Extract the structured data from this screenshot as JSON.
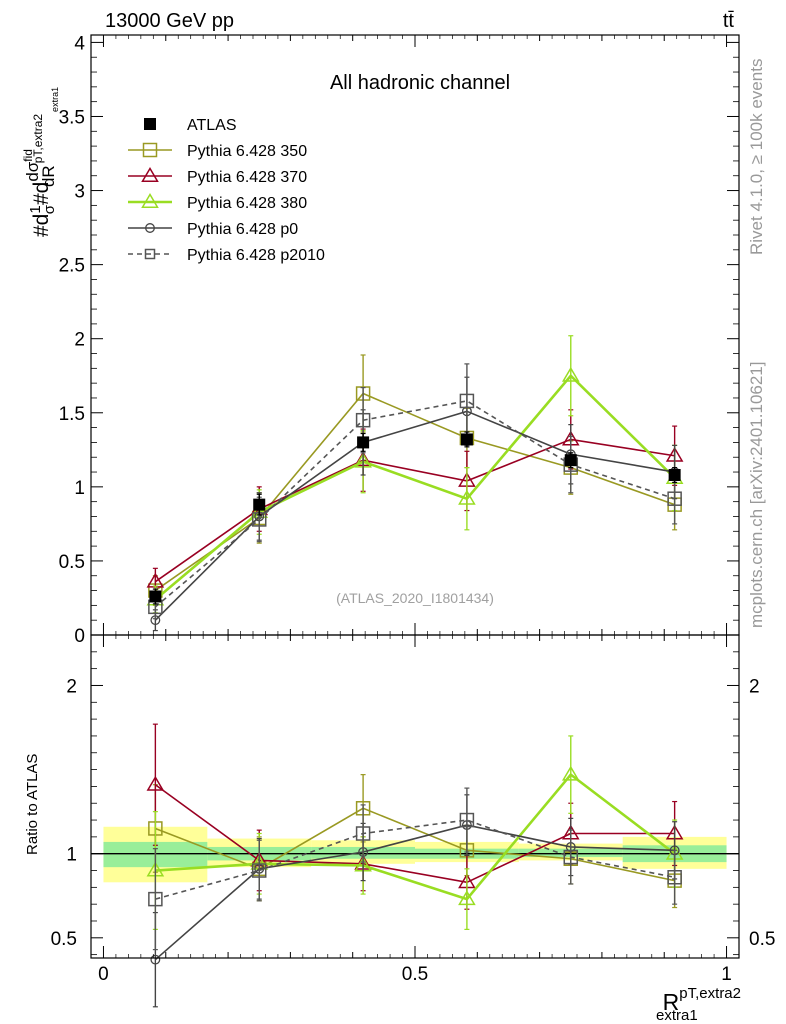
{
  "header": {
    "left": "13000 GeV pp",
    "right": "tt̄"
  },
  "side_labels": {
    "rivet": "Rivet 4.1.0, ≥ 100k events",
    "mcplots": "mcplots.cern.ch [arXiv:2401.10621]"
  },
  "colors": {
    "atlas": "#000000",
    "p350": "#999922",
    "p370": "#990022",
    "p380": "#99dd22",
    "p0": "#444444",
    "p2010": "#555555",
    "band_inner": "#99ee99",
    "band_outer": "#ffff99"
  },
  "chart_data": [
    {
      "type": "line",
      "panel": "main",
      "title": "All hadronic channel",
      "annotation": "(ATLAS_2020_I1801434)",
      "ylabel": {
        "a": "#d",
        "b": "1",
        "c": "σ",
        "d": "#d",
        "e": "dσ",
        "f": "fid",
        "g": "dR",
        "h": "pT,extra2",
        "i": "extra1"
      },
      "ylim": [
        0,
        4.05
      ],
      "yticks": [
        {
          "v": 0,
          "label": "0"
        },
        {
          "v": 0.5,
          "label": "0.5"
        },
        {
          "v": 1,
          "label": "1"
        },
        {
          "v": 1.5,
          "label": "1.5"
        },
        {
          "v": 2,
          "label": "2"
        },
        {
          "v": 2.5,
          "label": "2.5"
        },
        {
          "v": 3,
          "label": "3"
        },
        {
          "v": 3.5,
          "label": "3.5"
        },
        {
          "v": 4,
          "label": "4"
        }
      ],
      "x": [
        0.0833,
        0.25,
        0.4167,
        0.5833,
        0.75,
        0.9167
      ],
      "bin_edges": [
        0,
        0.1667,
        0.3333,
        0.5,
        0.6667,
        0.8333,
        1.0
      ],
      "series": [
        {
          "name": "ATLAS",
          "key": "atlas",
          "marker": "fsquare",
          "line": "none",
          "values": [
            0.26,
            0.88,
            1.3,
            1.32,
            1.18,
            1.08
          ],
          "err": [
            0.05,
            0.07,
            0.06,
            0.05,
            0.05,
            0.05
          ]
        },
        {
          "name": "Pythia 6.428 350",
          "key": "p350",
          "marker": "osquare",
          "line": "solid",
          "values": [
            0.3,
            0.79,
            1.63,
            1.33,
            1.13,
            0.88
          ],
          "err": [
            0.1,
            0.17,
            0.26,
            0.2,
            0.18,
            0.17
          ]
        },
        {
          "name": "Pythia 6.428 370",
          "key": "p370",
          "marker": "triangle",
          "line": "solid",
          "values": [
            0.36,
            0.85,
            1.18,
            1.04,
            1.32,
            1.21
          ],
          "err": [
            0.09,
            0.15,
            0.21,
            0.2,
            0.2,
            0.2
          ]
        },
        {
          "name": "Pythia 6.428 380",
          "key": "p380",
          "marker": "triangle",
          "line": "solid",
          "values": [
            0.24,
            0.83,
            1.17,
            0.92,
            1.75,
            1.06
          ],
          "err": [
            0.09,
            0.15,
            0.21,
            0.21,
            0.27,
            0.22
          ]
        },
        {
          "name": "Pythia 6.428 p0",
          "key": "p0",
          "marker": "circle",
          "line": "solid",
          "values": [
            0.1,
            0.8,
            1.3,
            1.51,
            1.22,
            1.1
          ],
          "err": [
            0.07,
            0.16,
            0.22,
            0.23,
            0.2,
            0.18
          ]
        },
        {
          "name": "Pythia 6.428 p2010",
          "key": "p2010",
          "marker": "osquare",
          "line": "dashed",
          "values": [
            0.19,
            0.78,
            1.45,
            1.58,
            1.15,
            0.92
          ],
          "err": [
            0.08,
            0.15,
            0.22,
            0.25,
            0.19,
            0.17
          ]
        }
      ]
    },
    {
      "type": "line",
      "panel": "ratio",
      "ylabel": "Ratio to ATLAS",
      "xlabel": {
        "base": "R",
        "sup": "pT,extra2",
        "sub": "extra1"
      },
      "xlim": [
        -0.02,
        1.02
      ],
      "ylim": [
        0.38,
        2.3
      ],
      "xticks": [
        {
          "v": 0,
          "label": "0"
        },
        {
          "v": 0.5,
          "label": "0.5"
        },
        {
          "v": 1,
          "label": "1"
        }
      ],
      "yticks": [
        {
          "v": 0.5,
          "label": "0.5"
        },
        {
          "v": 1,
          "label": "1"
        },
        {
          "v": 2,
          "label": "2"
        }
      ],
      "yticks_right": [
        {
          "v": 0.5,
          "label": "0.5"
        },
        {
          "v": 2,
          "label": "2"
        }
      ],
      "bands": {
        "outer": [
          [
            0.83,
            1.16
          ],
          [
            0.92,
            1.09
          ],
          [
            0.94,
            1.08
          ],
          [
            0.95,
            1.07
          ],
          [
            0.96,
            1.06
          ],
          [
            0.91,
            1.1
          ]
        ],
        "inner": [
          [
            0.92,
            1.07
          ],
          [
            0.96,
            1.04
          ],
          [
            0.97,
            1.04
          ],
          [
            0.97,
            1.03
          ],
          [
            0.98,
            1.03
          ],
          [
            0.95,
            1.05
          ]
        ]
      },
      "series": [
        {
          "key": "p350",
          "values": [
            1.15,
            0.91,
            1.27,
            1.02,
            0.97,
            0.84
          ],
          "err": [
            0.26,
            0.19,
            0.2,
            0.15,
            0.15,
            0.16
          ]
        },
        {
          "key": "p370",
          "values": [
            1.41,
            0.96,
            0.94,
            0.83,
            1.12,
            1.12
          ],
          "err": [
            0.36,
            0.18,
            0.16,
            0.16,
            0.18,
            0.19
          ]
        },
        {
          "key": "p380",
          "values": [
            0.9,
            0.94,
            0.93,
            0.73,
            1.47,
            1.0
          ],
          "err": [
            0.35,
            0.18,
            0.17,
            0.18,
            0.23,
            0.2
          ]
        },
        {
          "key": "p0",
          "values": [
            0.37,
            0.91,
            1.01,
            1.17,
            1.04,
            1.02
          ],
          "err": [
            0.28,
            0.18,
            0.17,
            0.18,
            0.17,
            0.17
          ]
        },
        {
          "key": "p2010",
          "values": [
            0.73,
            0.9,
            1.12,
            1.2,
            0.98,
            0.86
          ],
          "err": [
            0.3,
            0.18,
            0.17,
            0.19,
            0.16,
            0.16
          ]
        }
      ]
    }
  ]
}
